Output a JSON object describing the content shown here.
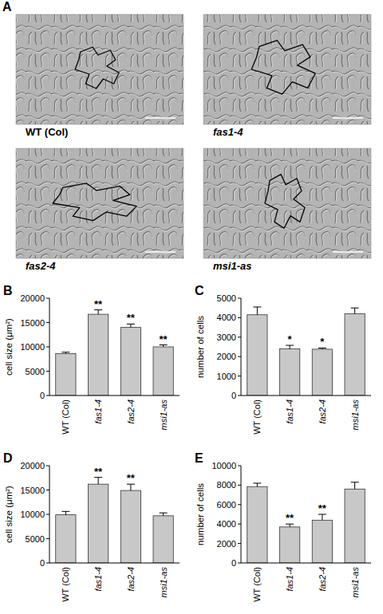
{
  "panel_a": {
    "label": "A",
    "captions": [
      "WT (Col)",
      "fas1-4",
      "fas2-4",
      "msi1-as"
    ]
  },
  "chart_data": [
    {
      "type": "bar",
      "panel_label": "B",
      "y_label": "cell size (μm²)",
      "categories": [
        "WT (Col)",
        "fas1-4",
        "fas2-4",
        "msi1-as"
      ],
      "values": [
        8600,
        16700,
        14000,
        10000
      ],
      "errors": [
        300,
        900,
        700,
        400
      ],
      "significance": [
        null,
        "**",
        "**",
        "**"
      ],
      "color": "#c8c8c8",
      "ylim": [
        0,
        20000
      ],
      "yticks": [
        0,
        5000,
        10000,
        15000,
        20000
      ],
      "grid": false
    },
    {
      "type": "bar",
      "panel_label": "C",
      "y_label": "number of cells",
      "categories": [
        "WT (Col)",
        "fas1-4",
        "fas2-4",
        "msi1-as"
      ],
      "values": [
        4150,
        2400,
        2380,
        4200
      ],
      "errors": [
        400,
        180,
        60,
        300
      ],
      "significance": [
        null,
        "*",
        "*",
        null
      ],
      "color": "#c8c8c8",
      "ylim": [
        0,
        5000
      ],
      "yticks": [
        0,
        1000,
        2000,
        3000,
        4000,
        5000
      ],
      "grid": false
    },
    {
      "type": "bar",
      "panel_label": "D",
      "y_label": "cell size (μm²)",
      "categories": [
        "WT (Col)",
        "fas1-4",
        "fas2-4",
        "msi1-as"
      ],
      "values": [
        9900,
        16200,
        14900,
        9700
      ],
      "errors": [
        700,
        1400,
        1300,
        600
      ],
      "significance": [
        null,
        "**",
        "**",
        null
      ],
      "color": "#c8c8c8",
      "ylim": [
        0,
        20000
      ],
      "yticks": [
        0,
        5000,
        10000,
        15000,
        20000
      ],
      "grid": false
    },
    {
      "type": "bar",
      "panel_label": "E",
      "y_label": "number of cells",
      "categories": [
        "WT (Col)",
        "fas1-4",
        "fas2-4",
        "msi1-as"
      ],
      "values": [
        7850,
        3700,
        4400,
        7600
      ],
      "errors": [
        350,
        300,
        600,
        700
      ],
      "significance": [
        null,
        "**",
        "**",
        null
      ],
      "color": "#c8c8c8",
      "ylim": [
        0,
        10000
      ],
      "yticks": [
        0,
        2000,
        4000,
        6000,
        8000,
        10000
      ],
      "grid": false
    }
  ]
}
